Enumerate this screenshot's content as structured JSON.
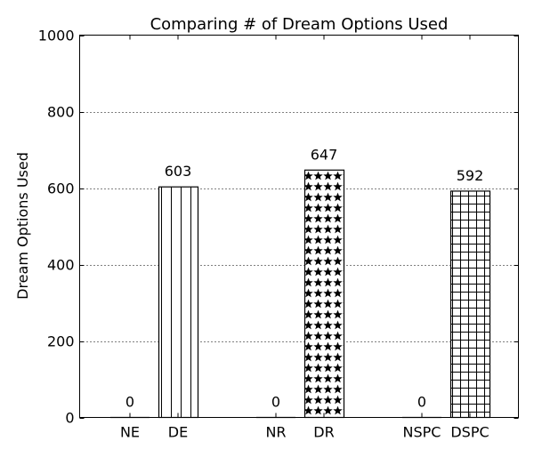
{
  "chart_data": {
    "type": "bar",
    "title": "Comparing # of Dream Options Used",
    "xlabel": "",
    "ylabel": "Dream Options Used",
    "ylim": [
      0,
      1000
    ],
    "yticks": [
      0,
      200,
      400,
      600,
      800,
      1000
    ],
    "grid": "y-dotted",
    "legend": "none",
    "categories": [
      "NE",
      "DE",
      "NR",
      "DR",
      "NSPC",
      "DSPC"
    ],
    "groups": [
      {
        "categories": [
          "NE",
          "DE"
        ],
        "values": [
          0,
          603
        ],
        "patterns": [
          "none",
          "vertical-lines"
        ]
      },
      {
        "categories": [
          "NR",
          "DR"
        ],
        "values": [
          0,
          647
        ],
        "patterns": [
          "none",
          "stars"
        ]
      },
      {
        "categories": [
          "NSPC",
          "DSPC"
        ],
        "values": [
          0,
          592
        ],
        "patterns": [
          "none",
          "grid"
        ]
      }
    ],
    "values": [
      0,
      603,
      0,
      647,
      0,
      592
    ],
    "data_labels": [
      "0",
      "603",
      "0",
      "647",
      "0",
      "592"
    ]
  }
}
